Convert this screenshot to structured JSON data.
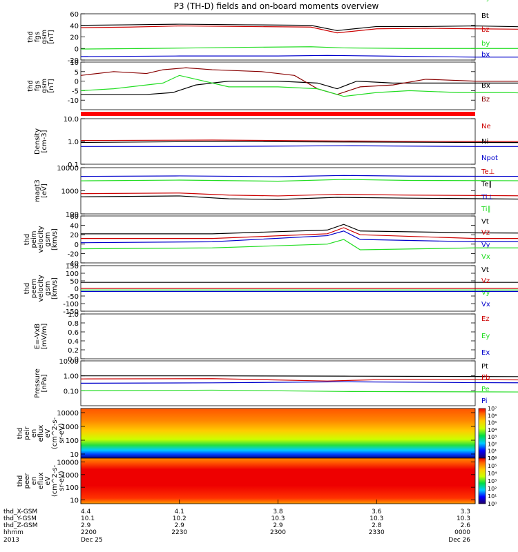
{
  "title": "P3 (TH-D) fields and on-board moments overview",
  "colors": {
    "black": "#000000",
    "red": "#cc0000",
    "green": "#22dd22",
    "blue": "#0000cc",
    "darkred": "#880000"
  },
  "chart_data": [
    {
      "type": "line",
      "ylabel": [
        "thd",
        "fgs",
        "gsm",
        "[nT]"
      ],
      "ylim": [
        -20,
        60
      ],
      "yticks": [
        {
          "v": -20,
          "t": "-20"
        },
        {
          "v": 0,
          "t": "0"
        },
        {
          "v": 20,
          "t": "20"
        },
        {
          "v": 40,
          "t": "40"
        },
        {
          "v": 60,
          "t": "60"
        }
      ],
      "series": [
        {
          "name": "Bt",
          "color": "#000000",
          "x": [
            0,
            15,
            30,
            50,
            70,
            78,
            90,
            105,
            120,
            140,
            160,
            180,
            186
          ],
          "y": [
            40,
            41,
            42,
            41,
            40,
            31,
            38,
            38,
            39,
            37,
            36,
            35,
            35
          ]
        },
        {
          "name": "bz",
          "color": "#cc0000",
          "x": [
            0,
            15,
            30,
            50,
            70,
            78,
            90,
            105,
            120,
            140,
            160,
            180,
            186
          ],
          "y": [
            36,
            37,
            39,
            38,
            37,
            27,
            34,
            35,
            34,
            33,
            31,
            30,
            30
          ]
        },
        {
          "name": "by",
          "color": "#22dd22",
          "x": [
            0,
            20,
            35,
            50,
            70,
            80,
            100,
            120,
            140,
            160,
            186
          ],
          "y": [
            -1,
            0,
            1,
            2,
            3,
            1,
            0,
            0,
            0,
            -1,
            -1
          ]
        },
        {
          "name": "bx",
          "color": "#0000cc",
          "x": [
            0,
            30,
            60,
            75,
            90,
            120,
            150,
            186
          ],
          "y": [
            -14,
            -13,
            -13,
            -12,
            -13,
            -15,
            -15,
            -15
          ]
        }
      ]
    },
    {
      "type": "line",
      "ylabel": [
        "thd",
        "fgs",
        "gsm",
        "[nT]"
      ],
      "ylim": [
        -15,
        10
      ],
      "yticks": [
        {
          "v": -10,
          "t": "-10"
        },
        {
          "v": -5,
          "t": "-5"
        },
        {
          "v": 0,
          "t": "0"
        },
        {
          "v": 5,
          "t": "5"
        },
        {
          "v": 10,
          "t": "10"
        }
      ],
      "series": [
        {
          "name": "Bx",
          "color": "#000000",
          "x": [
            0,
            10,
            20,
            28,
            35,
            45,
            60,
            72,
            78,
            84,
            95,
            110,
            130,
            150,
            170,
            186
          ],
          "y": [
            -7,
            -7,
            -7,
            -6,
            -2,
            0,
            0,
            -1,
            -4,
            0,
            -1,
            -1,
            -1,
            -1,
            -1,
            -1
          ]
        },
        {
          "name": "Bz",
          "color": "#880000",
          "x": [
            0,
            10,
            20,
            25,
            32,
            40,
            55,
            65,
            72,
            78,
            85,
            95,
            105,
            120,
            140,
            160,
            186
          ],
          "y": [
            3,
            5,
            4,
            6,
            7,
            6,
            5,
            3,
            -4,
            -7,
            -3,
            -2,
            1,
            0,
            0,
            0,
            -1
          ]
        },
        {
          "name": "By",
          "color": "#22dd22",
          "x": [
            0,
            10,
            20,
            25,
            30,
            35,
            45,
            60,
            72,
            80,
            90,
            100,
            115,
            130,
            150,
            170,
            186
          ],
          "y": [
            -5,
            -4,
            -2,
            -1,
            3,
            1,
            -3,
            -3,
            -4,
            -8,
            -6,
            -5,
            -6,
            -6,
            -7,
            -7,
            -7
          ]
        }
      ]
    },
    {
      "type": "line",
      "ylabel": [
        "Density",
        "[cm-3]"
      ],
      "log": true,
      "ylim": [
        0.1,
        10
      ],
      "yticks": [
        {
          "v": 0.1,
          "t": "0.1"
        },
        {
          "v": 1,
          "t": "1.0"
        },
        {
          "v": 10,
          "t": "10.0"
        }
      ],
      "series": [
        {
          "name": "Ne",
          "color": "#cc0000",
          "x": [
            0,
            40,
            80,
            120,
            160,
            186
          ],
          "y": [
            1.1,
            1.15,
            1.05,
            1.0,
            1.0,
            1.0
          ]
        },
        {
          "name": "Ni",
          "color": "#000000",
          "x": [
            0,
            40,
            80,
            120,
            160,
            186
          ],
          "y": [
            0.9,
            1.0,
            0.95,
            0.9,
            0.88,
            0.9
          ]
        },
        {
          "name": "Npot",
          "color": "#0000cc",
          "x": [
            0,
            40,
            80,
            120,
            160,
            186
          ],
          "y": [
            0.6,
            0.6,
            0.65,
            0.6,
            0.6,
            0.6
          ]
        }
      ]
    },
    {
      "type": "line",
      "ylabel": [
        "magt3",
        "[eV]"
      ],
      "log": true,
      "ylim": [
        100,
        10000
      ],
      "yticks": [
        {
          "v": 100,
          "t": "100"
        },
        {
          "v": 1000,
          "t": "1000"
        },
        {
          "v": 10000,
          "t": "10000"
        }
      ],
      "series": [
        {
          "name": "Te⊥",
          "color": "#cc0000",
          "x": [
            0,
            30,
            45,
            60,
            78,
            100,
            140,
            186
          ],
          "y": [
            750,
            800,
            650,
            600,
            700,
            650,
            600,
            600
          ]
        },
        {
          "name": "Te∥",
          "color": "#000000",
          "x": [
            0,
            30,
            45,
            60,
            78,
            100,
            140,
            186
          ],
          "y": [
            550,
            600,
            450,
            420,
            520,
            480,
            430,
            430
          ]
        },
        {
          "name": "Ti⊥",
          "color": "#0000cc",
          "x": [
            0,
            30,
            60,
            80,
            100,
            140,
            186
          ],
          "y": [
            4200,
            4400,
            4100,
            4600,
            4300,
            4200,
            4200
          ]
        },
        {
          "name": "Ti∥",
          "color": "#22dd22",
          "x": [
            0,
            30,
            60,
            80,
            100,
            140,
            186
          ],
          "y": [
            2700,
            2900,
            2600,
            3100,
            2800,
            2700,
            2700
          ]
        }
      ]
    },
    {
      "type": "line",
      "ylabel": [
        "thd",
        "peim",
        "velocity",
        "gsm",
        "[km/s]"
      ],
      "ylim": [
        -40,
        60
      ],
      "yticks": [
        {
          "v": -40,
          "t": "-40"
        },
        {
          "v": -20,
          "t": "-20"
        },
        {
          "v": 0,
          "t": "0"
        },
        {
          "v": 20,
          "t": "20"
        },
        {
          "v": 40,
          "t": "40"
        },
        {
          "v": 60,
          "t": "60"
        }
      ],
      "series": [
        {
          "name": "Vt",
          "color": "#000000",
          "x": [
            0,
            40,
            75,
            80,
            85,
            120,
            186
          ],
          "y": [
            22,
            22,
            30,
            42,
            28,
            24,
            22
          ]
        },
        {
          "name": "Vz",
          "color": "#cc0000",
          "x": [
            0,
            40,
            75,
            80,
            85,
            120,
            186
          ],
          "y": [
            12,
            12,
            22,
            35,
            20,
            12,
            12
          ]
        },
        {
          "name": "Vy",
          "color": "#0000cc",
          "x": [
            0,
            40,
            75,
            80,
            85,
            120,
            186
          ],
          "y": [
            3,
            5,
            18,
            28,
            10,
            5,
            5
          ]
        },
        {
          "name": "Vx",
          "color": "#22dd22",
          "x": [
            0,
            40,
            75,
            80,
            85,
            120,
            186
          ],
          "y": [
            -10,
            -8,
            0,
            10,
            -12,
            -8,
            -8
          ]
        }
      ]
    },
    {
      "type": "line",
      "ylabel": [
        "thd",
        "peem",
        "velocity",
        "gsm",
        "[km/s]"
      ],
      "ylim": [
        -150,
        150
      ],
      "yticks": [
        {
          "v": -150,
          "t": "-150"
        },
        {
          "v": -100,
          "t": "-100"
        },
        {
          "v": -50,
          "t": "-50"
        },
        {
          "v": 0,
          "t": "0"
        },
        {
          "v": 50,
          "t": "50"
        },
        {
          "v": 100,
          "t": "100"
        },
        {
          "v": 150,
          "t": "150"
        }
      ],
      "series": [
        {
          "name": "Vt",
          "color": "#000000",
          "x": [
            0,
            186
          ],
          "y": [
            40,
            40
          ]
        },
        {
          "name": "Vz",
          "color": "#cc0000",
          "x": [
            0,
            186
          ],
          "y": [
            0,
            0
          ]
        },
        {
          "name": "Vy",
          "color": "#22dd22",
          "x": [
            0,
            186
          ],
          "y": [
            -10,
            -10
          ]
        },
        {
          "name": "Vx",
          "color": "#0000cc",
          "x": [
            0,
            186
          ],
          "y": [
            -20,
            -20
          ]
        }
      ]
    },
    {
      "type": "line",
      "ylabel": [
        "E=-VxB",
        "[mV/m]"
      ],
      "ylim": [
        0,
        1
      ],
      "yticks": [
        {
          "v": 0,
          "t": "0.0"
        },
        {
          "v": 0.2,
          "t": "0.2"
        },
        {
          "v": 0.4,
          "t": "0.4"
        },
        {
          "v": 0.6,
          "t": "0.6"
        },
        {
          "v": 0.8,
          "t": "0.8"
        },
        {
          "v": 1,
          "t": "1.0"
        }
      ],
      "series": [
        {
          "name": "Ez",
          "color": "#cc0000",
          "x": [],
          "y": []
        },
        {
          "name": "Ey",
          "color": "#22dd22",
          "x": [],
          "y": []
        },
        {
          "name": "Ex",
          "color": "#0000cc",
          "x": [],
          "y": []
        }
      ]
    },
    {
      "type": "line",
      "ylabel": [
        "Pressure",
        "[nPa]"
      ],
      "log": true,
      "ylim": [
        0.01,
        10
      ],
      "yticks": [
        {
          "v": 0.1,
          "t": "0.10"
        },
        {
          "v": 1,
          "t": "1.00"
        },
        {
          "v": 10,
          "t": "10.00"
        }
      ],
      "series": [
        {
          "name": "Pt",
          "color": "#000000",
          "x": [
            0,
            40,
            80,
            120,
            160,
            186
          ],
          "y": [
            1.0,
            1.0,
            0.95,
            0.9,
            0.85,
            0.85
          ]
        },
        {
          "name": "Pb",
          "color": "#cc0000",
          "x": [
            0,
            40,
            75,
            90,
            120,
            160,
            186
          ],
          "y": [
            0.62,
            0.65,
            0.45,
            0.55,
            0.55,
            0.5,
            0.5
          ]
        },
        {
          "name": "Pe",
          "color": "#22dd22",
          "x": [
            0,
            40,
            80,
            120,
            160,
            186
          ],
          "y": [
            0.1,
            0.11,
            0.09,
            0.085,
            0.08,
            0.08
          ]
        },
        {
          "name": "Pi",
          "color": "#0000cc",
          "x": [
            0,
            40,
            80,
            120,
            160,
            186
          ],
          "y": [
            0.32,
            0.34,
            0.4,
            0.35,
            0.33,
            0.33
          ]
        }
      ]
    },
    {
      "type": "heatmap",
      "ylabel": [
        "thd",
        "peir",
        "en",
        "eflux",
        "eV",
        "(cm^2-s-",
        "sr-eV)"
      ],
      "log": true,
      "ylim": [
        5,
        20000
      ],
      "yticks": [
        {
          "v": 10,
          "t": "10"
        },
        {
          "v": 100,
          "t": "100"
        },
        {
          "v": 1000,
          "t": "1000"
        },
        {
          "v": 10000,
          "t": "10000"
        }
      ],
      "colorbar": {
        "labels": [
          "10⁰",
          "10¹",
          "10²",
          "10³",
          "10⁴",
          "10⁵",
          "10⁶",
          "10⁷"
        ]
      }
    },
    {
      "type": "heatmap",
      "ylabel": [
        "thd",
        "peer",
        "en",
        "eflux",
        "eV",
        "(cm^2-s-",
        "sr-eV)"
      ],
      "log": true,
      "ylim": [
        5,
        20000
      ],
      "yticks": [
        {
          "v": 10,
          "t": "10"
        },
        {
          "v": 100,
          "t": "100"
        },
        {
          "v": 1000,
          "t": "1000"
        },
        {
          "v": 10000,
          "t": "10000"
        }
      ],
      "colorbar": {
        "labels": [
          "10⁰",
          "10¹",
          "10²",
          "10³",
          "10⁴",
          "10⁵",
          "10⁶"
        ]
      }
    }
  ],
  "time_axis": {
    "row_labels": [
      "thd_X-GSM",
      "thd_Y-GSM",
      "thd_Z-GSM",
      "hhmm",
      "2013"
    ],
    "ticks": [
      {
        "x": 0,
        "values": [
          "4.4",
          "10.1",
          "2.9",
          "2200",
          "Dec 25"
        ]
      },
      {
        "x": 30,
        "values": [
          "4.1",
          "10.2",
          "2.9",
          "2230"
        ]
      },
      {
        "x": 60,
        "values": [
          "3.8",
          "10.3",
          "2.9",
          "2300"
        ]
      },
      {
        "x": 90,
        "values": [
          "3.6",
          "10.3",
          "2.8",
          "2330"
        ]
      },
      {
        "x": 120,
        "values": [
          "3.3",
          "10.3",
          "2.6",
          "0000",
          "Dec 26"
        ]
      }
    ]
  }
}
